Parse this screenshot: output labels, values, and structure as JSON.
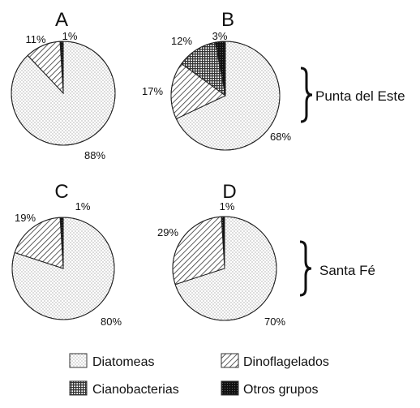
{
  "chart_data": [
    {
      "type": "pie",
      "title": "A",
      "categories": [
        "Diatomeas",
        "Dinoflagelados",
        "Cianobacterias",
        "Otros grupos"
      ],
      "values": [
        88,
        11,
        0,
        1
      ],
      "labels": [
        "88%",
        "11%",
        "",
        "1%"
      ]
    },
    {
      "type": "pie",
      "title": "B",
      "categories": [
        "Diatomeas",
        "Dinoflagelados",
        "Cianobacterias",
        "Otros grupos"
      ],
      "values": [
        68,
        17,
        12,
        3
      ],
      "labels": [
        "68%",
        "17%",
        "12%",
        "3%"
      ]
    },
    {
      "type": "pie",
      "title": "C",
      "categories": [
        "Diatomeas",
        "Dinoflagelados",
        "Cianobacterias",
        "Otros grupos"
      ],
      "values": [
        80,
        19,
        0,
        1
      ],
      "labels": [
        "80%",
        "19%",
        "",
        "1%"
      ]
    },
    {
      "type": "pie",
      "title": "D",
      "categories": [
        "Diatomeas",
        "Dinoflagelados",
        "Cianobacterias",
        "Otros grupos"
      ],
      "values": [
        70,
        29,
        0,
        1
      ],
      "labels": [
        "70%",
        "29%",
        "",
        "1%"
      ]
    }
  ],
  "groups": [
    "Punta del Este",
    "Santa Fé"
  ],
  "legend": {
    "entries": [
      {
        "label": "Diatomeas",
        "pattern": "dots"
      },
      {
        "label": "Dinoflagelados",
        "pattern": "hatch"
      },
      {
        "label": "Cianobacterias",
        "pattern": "grid"
      },
      {
        "label": "Otros grupos",
        "pattern": "solid-dark"
      }
    ]
  }
}
